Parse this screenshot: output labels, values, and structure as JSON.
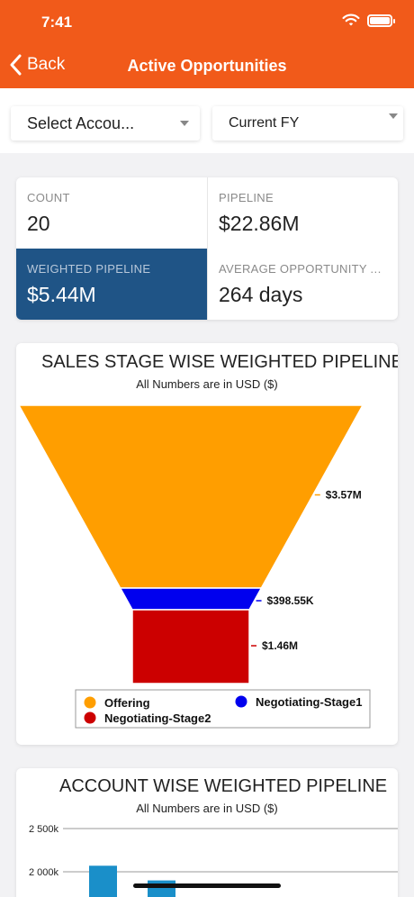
{
  "status": {
    "time": "7:41"
  },
  "header": {
    "back_label": "Back",
    "title": "Active Opportunities"
  },
  "filters": {
    "account": {
      "value": "Select Accou..."
    },
    "period": {
      "value": "Current FY"
    }
  },
  "kpis": [
    {
      "label": "COUNT",
      "value": "20"
    },
    {
      "label": "PIPELINE",
      "value": "$22.86M"
    },
    {
      "label": "WEIGHTED PIPELINE",
      "value": "$5.44M"
    },
    {
      "label": "AVERAGE OPPORTUNITY A...",
      "value": "264 days"
    }
  ],
  "colors": {
    "accent": "#f15a1a",
    "kpi_highlight": "#1f5486"
  },
  "chart_data": [
    {
      "type": "funnel",
      "title": "SALES STAGE WISE WEIGHTED PIPELINE",
      "subtitle": "All Numbers are in USD ($)",
      "legend_position": "bottom",
      "stages": [
        {
          "name": "Offering",
          "label": "$3.57M",
          "value": 3.57,
          "color": "#ff9e00"
        },
        {
          "name": "Negotiating-Stage1",
          "label": "$398.55K",
          "value": 0.39855,
          "color": "#0000ee"
        },
        {
          "name": "Negotiating-Stage2",
          "label": "$1.46M",
          "value": 1.46,
          "color": "#cc0000"
        }
      ]
    },
    {
      "type": "bar",
      "title": "ACCOUNT WISE WEIGHTED PIPELINE",
      "subtitle": "All Numbers are in USD ($)",
      "yticks": [
        "2 500k",
        "2 000k"
      ],
      "ytick_values": [
        2500,
        2000
      ],
      "values": [
        2070,
        1900
      ],
      "color": "#1a8fc9",
      "grid": true
    }
  ]
}
